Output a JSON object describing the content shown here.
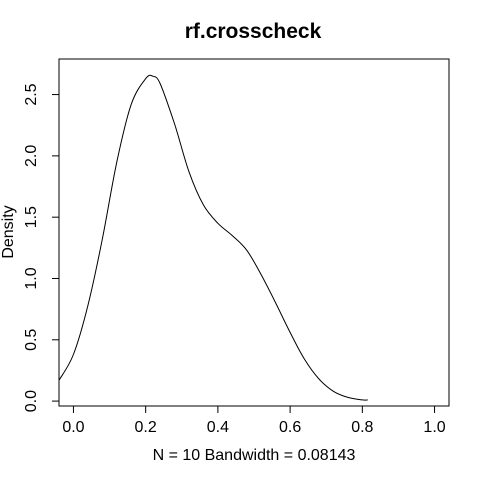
{
  "chart_data": {
    "type": "line",
    "title": "rf.crosscheck",
    "xlabel": "N = 10   Bandwidth = 0.08143",
    "ylabel": "Density",
    "xlim": [
      -0.04,
      1.04
    ],
    "ylim": [
      -0.04,
      2.79
    ],
    "x_ticks": [
      0.0,
      0.2,
      0.4,
      0.6,
      0.8,
      1.0
    ],
    "x_tick_labels": [
      "0.0",
      "0.2",
      "0.4",
      "0.6",
      "0.8",
      "1.0"
    ],
    "y_ticks": [
      0.0,
      0.5,
      1.0,
      1.5,
      2.0,
      2.5
    ],
    "y_tick_labels": [
      "0.0",
      "0.5",
      "1.0",
      "1.5",
      "2.0",
      "2.5"
    ],
    "grid": false,
    "series": [
      {
        "x": [
          -0.04,
          0.0,
          0.04,
          0.08,
          0.12,
          0.16,
          0.2,
          0.22,
          0.24,
          0.28,
          0.32,
          0.36,
          0.4,
          0.44,
          0.48,
          0.52,
          0.56,
          0.6,
          0.64,
          0.68,
          0.72,
          0.76,
          0.8,
          0.815
        ],
        "y": [
          0.17,
          0.38,
          0.78,
          1.32,
          1.95,
          2.42,
          2.63,
          2.65,
          2.59,
          2.26,
          1.87,
          1.6,
          1.45,
          1.35,
          1.23,
          1.03,
          0.8,
          0.56,
          0.34,
          0.18,
          0.08,
          0.03,
          0.01,
          0.01
        ]
      }
    ]
  }
}
